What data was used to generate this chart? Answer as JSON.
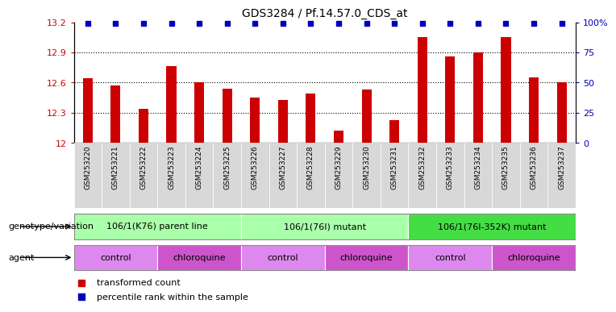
{
  "title": "GDS3284 / Pf.14.57.0_CDS_at",
  "samples": [
    "GSM253220",
    "GSM253221",
    "GSM253222",
    "GSM253223",
    "GSM253224",
    "GSM253225",
    "GSM253226",
    "GSM253227",
    "GSM253228",
    "GSM253229",
    "GSM253230",
    "GSM253231",
    "GSM253232",
    "GSM253233",
    "GSM253234",
    "GSM253235",
    "GSM253236",
    "GSM253237"
  ],
  "transformed_counts": [
    12.64,
    12.57,
    12.34,
    12.76,
    12.6,
    12.54,
    12.45,
    12.43,
    12.49,
    12.12,
    12.53,
    12.23,
    13.05,
    12.86,
    12.9,
    13.05,
    12.65,
    12.6
  ],
  "ylim_left": [
    12.0,
    13.2
  ],
  "ylim_right": [
    0,
    100
  ],
  "yticks_left": [
    12.0,
    12.3,
    12.6,
    12.9,
    13.2
  ],
  "yticks_right": [
    0,
    25,
    50,
    75,
    100
  ],
  "ytick_labels_left": [
    "12",
    "12.3",
    "12.6",
    "12.9",
    "13.2"
  ],
  "ytick_labels_right": [
    "0",
    "25",
    "50",
    "75",
    "100%"
  ],
  "bar_color": "#cc0000",
  "percentile_color": "#0000bb",
  "background_color": "#ffffff",
  "tick_bg_color": "#d8d8d8",
  "genotype_groups": [
    {
      "label": "106/1(K76) parent line",
      "start": 0,
      "end": 5,
      "color": "#aaffaa"
    },
    {
      "label": "106/1(76I) mutant",
      "start": 6,
      "end": 11,
      "color": "#aaffaa"
    },
    {
      "label": "106/1(76I-352K) mutant",
      "start": 12,
      "end": 17,
      "color": "#44dd44"
    }
  ],
  "agent_groups": [
    {
      "label": "control",
      "start": 0,
      "end": 2,
      "color": "#dd88ee"
    },
    {
      "label": "chloroquine",
      "start": 3,
      "end": 5,
      "color": "#cc55cc"
    },
    {
      "label": "control",
      "start": 6,
      "end": 8,
      "color": "#dd88ee"
    },
    {
      "label": "chloroquine",
      "start": 9,
      "end": 11,
      "color": "#cc55cc"
    },
    {
      "label": "control",
      "start": 12,
      "end": 14,
      "color": "#dd88ee"
    },
    {
      "label": "chloroquine",
      "start": 15,
      "end": 17,
      "color": "#cc55cc"
    }
  ],
  "legend_items": [
    {
      "label": "transformed count",
      "color": "#cc0000"
    },
    {
      "label": "percentile rank within the sample",
      "color": "#0000bb"
    }
  ],
  "genotype_label": "genotype/variation",
  "agent_label": "agent"
}
